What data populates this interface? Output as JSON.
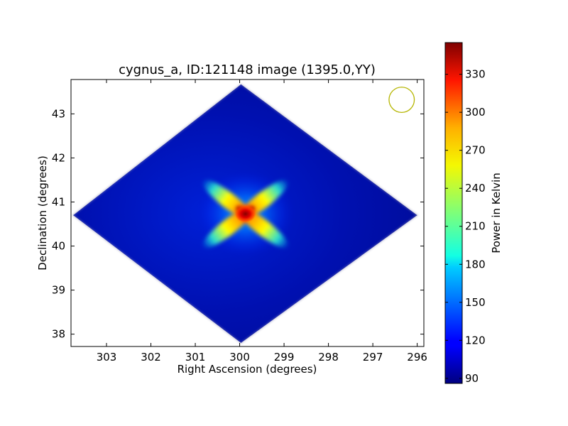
{
  "chart_data": {
    "type": "heatmap",
    "title": "cygnus_a, ID:121148 image (1395.0,YY)",
    "xlabel": "Right Ascension (degrees)",
    "ylabel": "Declination (degrees)",
    "xlim": [
      303.8,
      295.85
    ],
    "ylim": [
      37.72,
      43.78
    ],
    "x_ticks": [
      303,
      302,
      301,
      300,
      299,
      298,
      297,
      296
    ],
    "y_ticks": [
      38,
      39,
      40,
      41,
      42,
      43
    ],
    "x_tick_labels": [
      "303",
      "302",
      "301",
      "300",
      "299",
      "298",
      "297",
      "296"
    ],
    "y_tick_labels": [
      "38",
      "39",
      "40",
      "41",
      "42",
      "43"
    ],
    "grid": false,
    "colormap": "jet",
    "colorbar": {
      "label": "Power in Kelvin",
      "range": [
        86,
        355
      ],
      "ticks": [
        90,
        120,
        150,
        180,
        210,
        240,
        270,
        300,
        330
      ],
      "tick_labels": [
        "90",
        "120",
        "150",
        "180",
        "210",
        "240",
        "270",
        "300",
        "330"
      ]
    },
    "source": {
      "ra": 299.87,
      "dec": 40.73,
      "peak_kelvin": 350,
      "background_kelvin": 95
    },
    "footprint": {
      "shape": "diamond",
      "vertices": [
        [
          299.97,
          43.67
        ],
        [
          303.75,
          40.7
        ],
        [
          299.97,
          37.8
        ],
        [
          296.0,
          40.7
        ]
      ]
    },
    "beam_marker": {
      "ra": 296.35,
      "dec": 43.32,
      "radius_deg": 0.38,
      "color": "#b5b500"
    }
  }
}
